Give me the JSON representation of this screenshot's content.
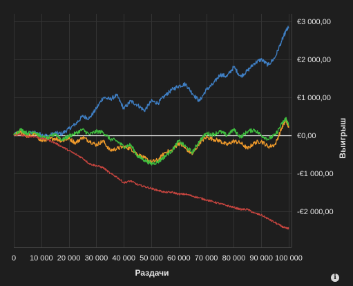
{
  "chart_data": {
    "type": "line",
    "xlabel": "Раздачи",
    "ylabel": "Выигрыш",
    "xlim": [
      0,
      101000
    ],
    "ylim": [
      -2950,
      3200
    ],
    "x_ticks": [
      0,
      10000,
      20000,
      30000,
      40000,
      50000,
      60000,
      70000,
      80000,
      90000,
      100000
    ],
    "x_tick_labels": [
      "0",
      "10 000",
      "20 000",
      "30 000",
      "40 000",
      "50 000",
      "60 000",
      "70 000",
      "80 000",
      "90 000",
      "100 000"
    ],
    "y_ticks": [
      3000,
      2000,
      1000,
      0,
      -1000,
      -2000
    ],
    "y_tick_labels": [
      "€3 000,00",
      "€2 000,00",
      "€1 000,00",
      "€0,00",
      "-€1 000,00",
      "-€2 000,00"
    ],
    "y_axis_position": "right",
    "grid": true,
    "zero_line": true,
    "series": [
      {
        "color": "#3f7fc4",
        "x": [
          0,
          2500,
          5000,
          7500,
          10000,
          12500,
          15000,
          17500,
          20000,
          22500,
          25000,
          27500,
          30000,
          32500,
          35000,
          37500,
          40000,
          42500,
          45000,
          47500,
          50000,
          52500,
          55000,
          57500,
          60000,
          62500,
          65000,
          67500,
          70000,
          72500,
          75000,
          77500,
          80000,
          82500,
          85000,
          87500,
          90000,
          92500,
          95000,
          97500,
          99000,
          100000
        ],
        "values": [
          0,
          110,
          30,
          80,
          20,
          -20,
          60,
          40,
          170,
          300,
          500,
          450,
          700,
          1000,
          950,
          1050,
          700,
          900,
          800,
          650,
          900,
          850,
          1050,
          1200,
          1300,
          1350,
          1100,
          900,
          1200,
          1350,
          1600,
          1550,
          1800,
          1550,
          1700,
          1900,
          2000,
          1850,
          2050,
          2500,
          2750,
          2850
        ]
      },
      {
        "color": "#ef9a2b",
        "x": [
          0,
          2500,
          5000,
          7500,
          10000,
          12500,
          15000,
          17500,
          20000,
          22500,
          25000,
          27500,
          30000,
          32500,
          35000,
          37500,
          40000,
          42500,
          45000,
          47500,
          50000,
          52500,
          55000,
          57500,
          60000,
          62500,
          65000,
          67500,
          70000,
          72500,
          75000,
          77500,
          80000,
          82500,
          85000,
          87500,
          90000,
          92500,
          95000,
          97500,
          99000,
          100000
        ],
        "values": [
          0,
          90,
          -30,
          50,
          -150,
          -100,
          -80,
          -150,
          -80,
          -200,
          -50,
          -150,
          -250,
          -150,
          -400,
          -350,
          -300,
          -350,
          -500,
          -600,
          -700,
          -650,
          -450,
          -400,
          -200,
          -350,
          -500,
          -200,
          -50,
          -100,
          -150,
          -250,
          -150,
          -200,
          -350,
          -200,
          -150,
          -300,
          -250,
          200,
          400,
          200
        ]
      },
      {
        "color": "#3fbf3f",
        "x": [
          0,
          2500,
          5000,
          7500,
          10000,
          12500,
          15000,
          17500,
          20000,
          22500,
          25000,
          27500,
          30000,
          32500,
          35000,
          37500,
          40000,
          42500,
          45000,
          47500,
          50000,
          52500,
          55000,
          57500,
          60000,
          62500,
          65000,
          67500,
          70000,
          72500,
          75000,
          77500,
          80000,
          82500,
          85000,
          87500,
          90000,
          92500,
          95000,
          97500,
          99000,
          100000
        ],
        "values": [
          0,
          150,
          50,
          100,
          -50,
          -80,
          50,
          -120,
          -20,
          50,
          150,
          20,
          100,
          80,
          -100,
          -150,
          -300,
          -250,
          -550,
          -650,
          -750,
          -700,
          -550,
          -400,
          -150,
          -300,
          -450,
          -150,
          50,
          20,
          100,
          0,
          150,
          -50,
          100,
          150,
          0,
          -100,
          0,
          300,
          450,
          250
        ]
      },
      {
        "color": "#c8453f",
        "x": [
          0,
          2500,
          5000,
          7500,
          10000,
          12500,
          15000,
          17500,
          20000,
          22500,
          25000,
          27500,
          30000,
          32500,
          35000,
          37500,
          40000,
          42500,
          45000,
          47500,
          50000,
          52500,
          55000,
          57500,
          60000,
          62500,
          65000,
          67500,
          70000,
          72500,
          75000,
          77500,
          80000,
          82500,
          85000,
          87500,
          90000,
          92500,
          95000,
          97500,
          99000,
          100000
        ],
        "values": [
          0,
          10,
          -30,
          -30,
          -80,
          -120,
          -200,
          -300,
          -400,
          -500,
          -600,
          -750,
          -800,
          -850,
          -1000,
          -1100,
          -1250,
          -1200,
          -1300,
          -1350,
          -1400,
          -1450,
          -1500,
          -1500,
          -1550,
          -1550,
          -1600,
          -1650,
          -1700,
          -1750,
          -1800,
          -1850,
          -1900,
          -1950,
          -1950,
          -2050,
          -2100,
          -2200,
          -2300,
          -2400,
          -2450,
          -2450
        ]
      }
    ]
  },
  "info_icon": {
    "glyph": "i"
  }
}
